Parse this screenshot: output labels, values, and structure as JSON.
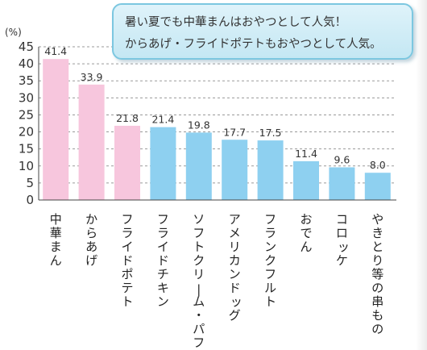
{
  "callout": {
    "line1": "暑い夏でも中華まんはおやつとして人気！",
    "line2": "からあげ・フライドポテトもおやつとして人気。"
  },
  "colors": {
    "highlight": "#f7c6dd",
    "default": "#8ed0f0",
    "callout_border": "#7cc7e0"
  },
  "chart_data": {
    "type": "bar",
    "title": "",
    "xlabel": "",
    "ylabel": "(%)",
    "ylim": [
      0,
      45
    ],
    "yticks": [
      0,
      5,
      10,
      15,
      20,
      25,
      30,
      35,
      40,
      45
    ],
    "grid": true,
    "categories": [
      "中華まん",
      "からあげ",
      "フライドポテト",
      "フライドチキン",
      "ソフトクリーム・パフェ",
      "アメリカンドッグ",
      "フランクフルト",
      "おでん",
      "コロッケ",
      "やきとり等の串もの"
    ],
    "values": [
      41.4,
      33.9,
      21.8,
      21.4,
      19.8,
      17.7,
      17.5,
      11.4,
      9.6,
      8.0
    ],
    "value_labels": [
      "41.4",
      "33.9",
      "21.8",
      "21.4",
      "19.8",
      "17.7",
      "17.5",
      "11.4",
      "9.6",
      "8.0"
    ],
    "highlight_count": 3
  }
}
